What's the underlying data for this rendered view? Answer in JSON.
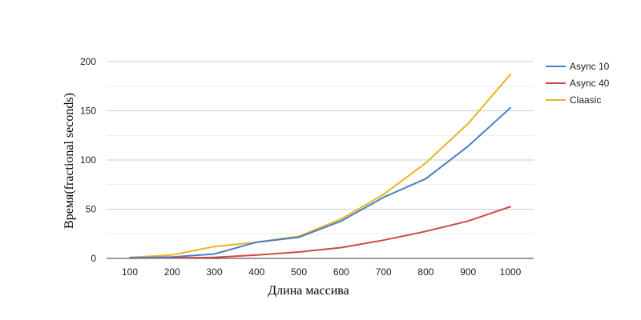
{
  "chart_data": {
    "type": "line",
    "x": [
      100,
      200,
      300,
      400,
      500,
      600,
      700,
      800,
      900,
      1000
    ],
    "series": [
      {
        "name": "Async 10",
        "color": "#4a7fc6",
        "values": [
          0.5,
          1.5,
          4.5,
          16.5,
          21.5,
          38,
          62,
          81,
          114,
          153
        ]
      },
      {
        "name": "Async 40",
        "color": "#cf4848",
        "values": [
          0.2,
          0.5,
          1,
          3.5,
          6.5,
          11,
          18.5,
          27.5,
          38,
          52.5
        ]
      },
      {
        "name": "Claasic",
        "color": "#e8b521",
        "values": [
          1,
          3.5,
          12,
          16.5,
          22.5,
          40,
          65,
          97,
          137,
          187
        ]
      }
    ],
    "xticks": [
      "100",
      "200",
      "300",
      "400",
      "500",
      "600",
      "700",
      "800",
      "900",
      "1000"
    ],
    "yticks": [
      "0",
      "50",
      "100",
      "150",
      "200"
    ],
    "ylim": [
      0,
      200
    ],
    "xlabel": "Длина массива",
    "ylabel": "Время(fractional seconds)",
    "grid": true,
    "minor_grid": true,
    "legend": "right"
  }
}
